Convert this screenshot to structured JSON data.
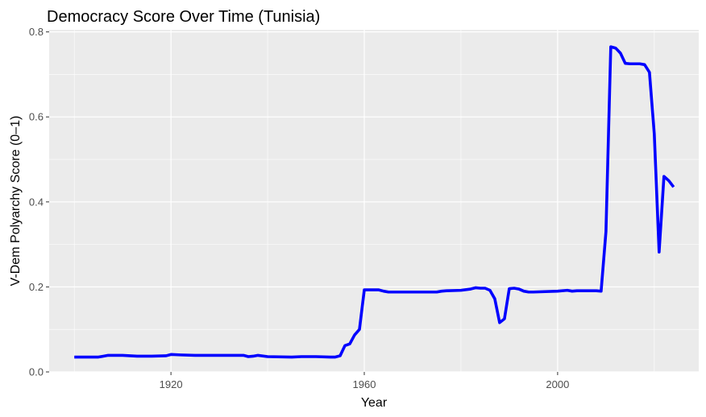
{
  "chart_data": {
    "type": "line",
    "title": "Democracy Score Over Time (Tunisia)",
    "xlabel": "Year",
    "ylabel": "V-Dem Polyarchy Score (0–1)",
    "xlim": [
      1894.8,
      2029.2
    ],
    "ylim": [
      0.0,
      0.805
    ],
    "x_ticks": [
      1920,
      1960,
      2000
    ],
    "x_tick_labels": [
      "1920",
      "1960",
      "2000"
    ],
    "y_ticks": [
      0.0,
      0.2,
      0.4,
      0.6,
      0.8
    ],
    "y_tick_labels": [
      "0.0",
      "0.2",
      "0.4",
      "0.6",
      "0.8"
    ],
    "grid": true,
    "colors": {
      "panel": "#ebebeb",
      "grid_major": "#ffffff",
      "line": "#0000ff",
      "tick": "#333333"
    },
    "series": [
      {
        "x": [
          1900,
          1905,
          1906,
          1907,
          1910,
          1913,
          1916,
          1919,
          1920,
          1922,
          1925,
          1930,
          1935,
          1936,
          1937,
          1938,
          1940,
          1945,
          1947,
          1950,
          1953,
          1954,
          1955,
          1956,
          1957,
          1958,
          1959,
          1960,
          1961,
          1962,
          1963,
          1964,
          1965,
          1970,
          1975,
          1976,
          1977,
          1980,
          1982,
          1983,
          1984,
          1985,
          1986,
          1987,
          1988,
          1989,
          1990,
          1991,
          1992,
          1993,
          1994,
          1995,
          2000,
          2002,
          2003,
          2004,
          2005,
          2006,
          2007,
          2008,
          2009,
          2010,
          2011,
          2012,
          2013,
          2014,
          2015,
          2016,
          2017,
          2018,
          2019,
          2020,
          2021,
          2022,
          2023,
          2024
        ],
        "values": [
          0.035,
          0.035,
          0.037,
          0.039,
          0.039,
          0.037,
          0.037,
          0.038,
          0.041,
          0.04,
          0.039,
          0.039,
          0.039,
          0.036,
          0.037,
          0.039,
          0.036,
          0.035,
          0.036,
          0.036,
          0.035,
          0.035,
          0.038,
          0.062,
          0.066,
          0.087,
          0.1,
          0.193,
          0.193,
          0.193,
          0.193,
          0.19,
          0.188,
          0.188,
          0.188,
          0.19,
          0.191,
          0.192,
          0.195,
          0.198,
          0.197,
          0.197,
          0.192,
          0.172,
          0.116,
          0.125,
          0.196,
          0.197,
          0.195,
          0.19,
          0.188,
          0.188,
          0.19,
          0.192,
          0.19,
          0.191,
          0.191,
          0.191,
          0.191,
          0.191,
          0.19,
          0.33,
          0.765,
          0.762,
          0.75,
          0.726,
          0.725,
          0.725,
          0.725,
          0.723,
          0.705,
          0.56,
          0.282,
          0.46,
          0.45,
          0.435
        ]
      }
    ]
  }
}
